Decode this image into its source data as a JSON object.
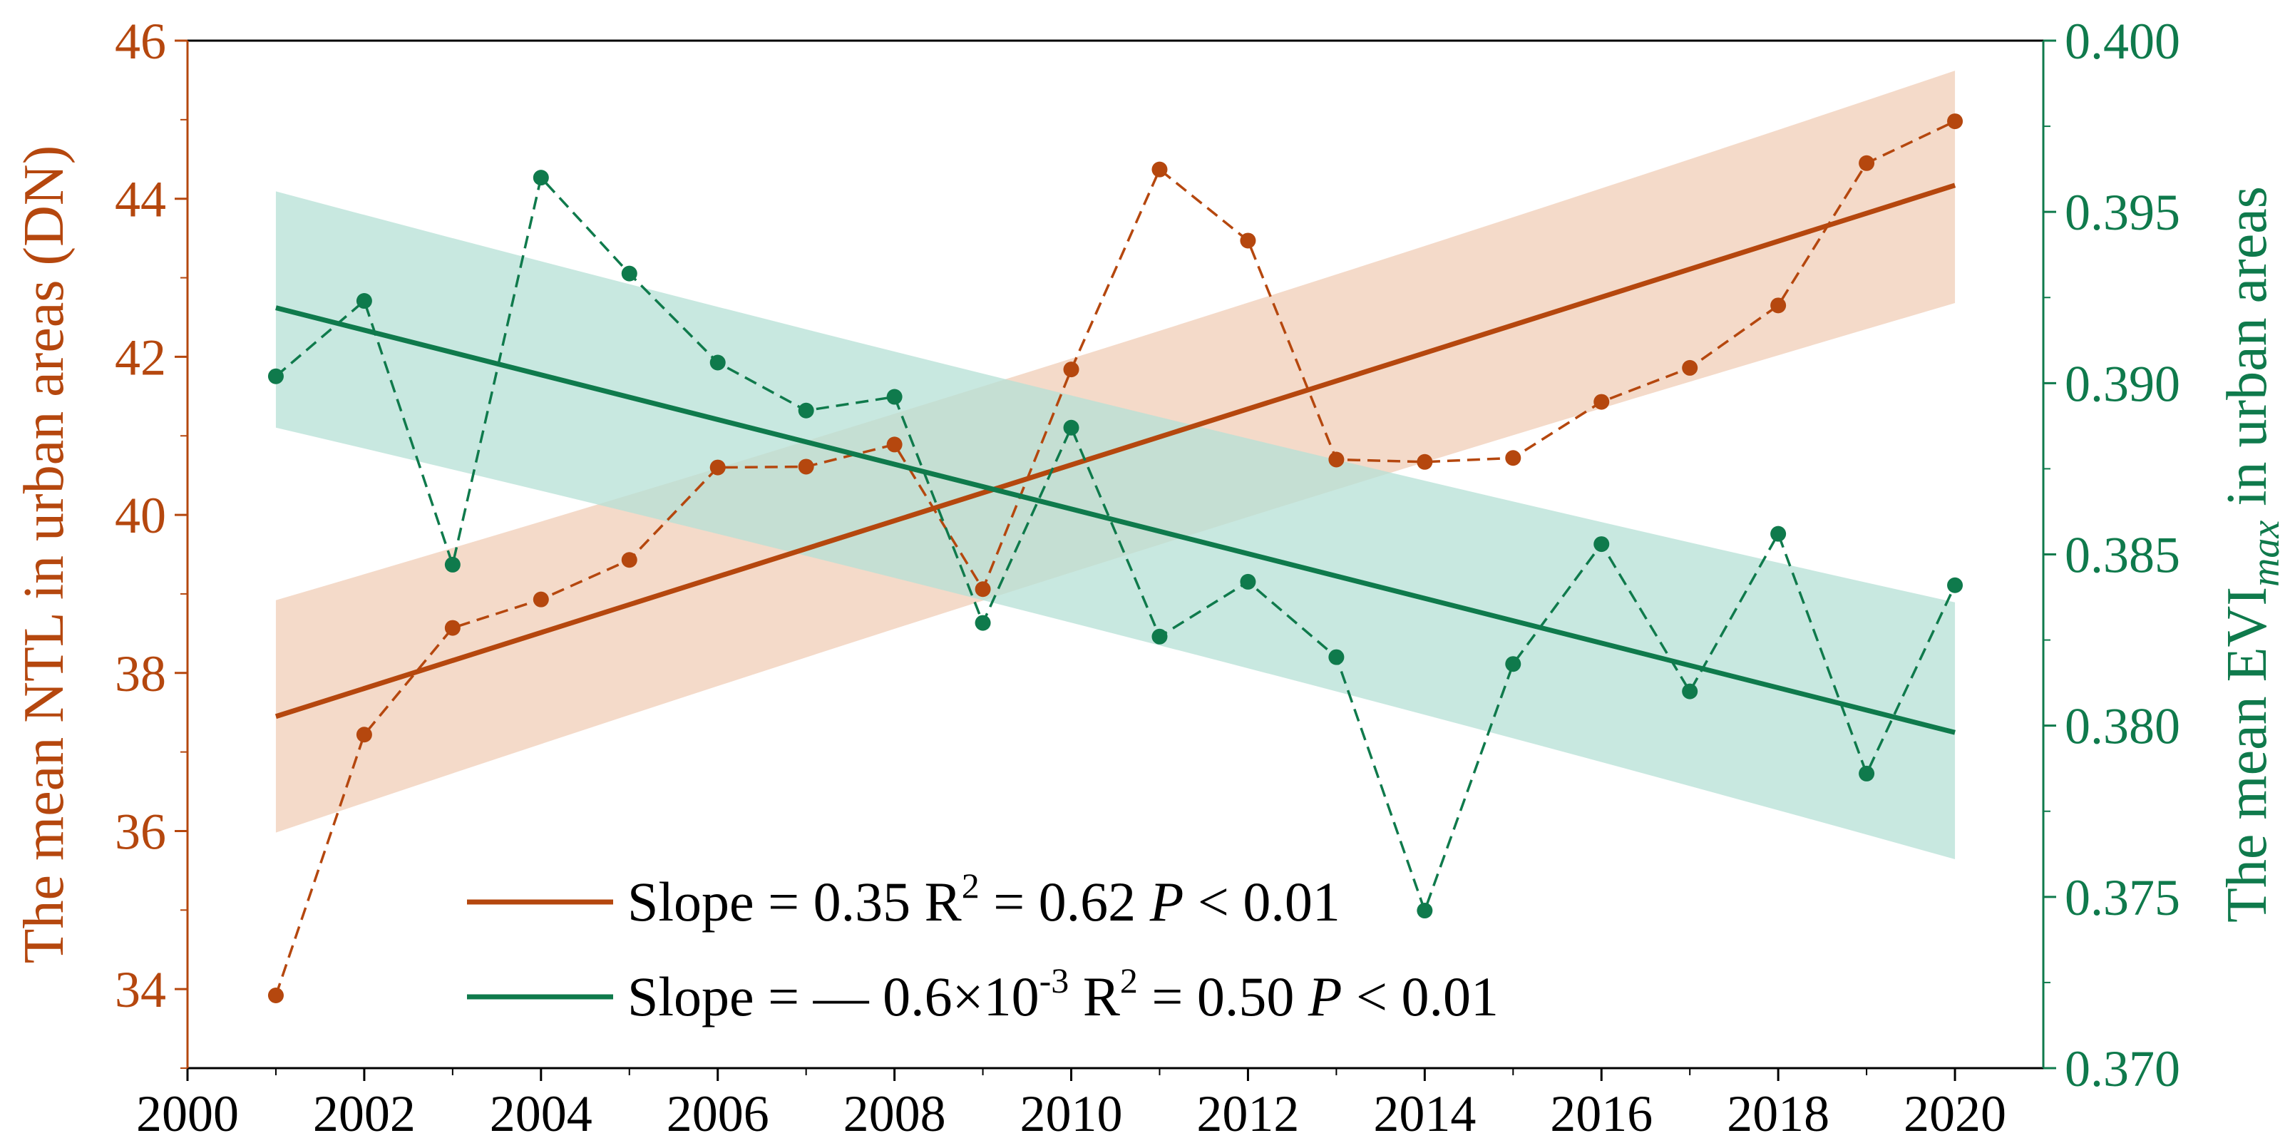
{
  "chart_data": {
    "type": "line",
    "x": [
      2001,
      2002,
      2003,
      2004,
      2005,
      2006,
      2007,
      2008,
      2009,
      2010,
      2011,
      2012,
      2013,
      2014,
      2015,
      2016,
      2017,
      2018,
      2019,
      2020
    ],
    "xlim": [
      2000,
      2021
    ],
    "xticks": [
      "2000",
      "2002",
      "2004",
      "2006",
      "2008",
      "2010",
      "2012",
      "2014",
      "2016",
      "2018",
      "2020"
    ],
    "y_left": {
      "label": "The mean NTL in urban areas (DN)",
      "ylim": [
        33,
        46
      ],
      "ticks": [
        "34",
        "36",
        "38",
        "40",
        "42",
        "44",
        "46"
      ],
      "color": "#b5470e"
    },
    "y_right": {
      "label_prefix": "The mean EVI",
      "label_sub": "max",
      "label_suffix": " in urban areas",
      "ylim": [
        0.37,
        0.4
      ],
      "ticks": [
        "0.370",
        "0.375",
        "0.380",
        "0.385",
        "0.390",
        "0.395",
        "0.400"
      ],
      "color": "#0f7a4c"
    },
    "series": [
      {
        "axis": "left",
        "color": "#b5470e",
        "band_color": "#f2d3c0",
        "values": [
          33.92,
          37.22,
          38.57,
          38.93,
          39.43,
          40.6,
          40.61,
          40.89,
          39.06,
          41.84,
          44.37,
          43.47,
          40.7,
          40.67,
          40.72,
          41.43,
          41.86,
          42.65,
          44.45,
          44.98
        ],
        "trend": [
          37.45,
          44.17
        ],
        "ci_lower": [
          35.98,
          42.68
        ],
        "ci_upper": [
          38.92,
          45.62
        ],
        "legend": {
          "prefix": "Slope =  0.35 R",
          "sup": "2",
          "mid": " = 0.62 ",
          "italic": "P",
          "suffix": " < 0.01"
        }
      },
      {
        "axis": "right",
        "color": "#0f7a4c",
        "band_color": "#b6e0d6",
        "values": [
          0.3902,
          0.3924,
          0.3847,
          0.396,
          0.3932,
          0.3906,
          0.3892,
          0.3896,
          0.383,
          0.3887,
          0.3826,
          0.3842,
          0.382,
          0.3746,
          0.3818,
          0.3853,
          0.381,
          0.3856,
          0.3786,
          0.3841
        ],
        "trend": [
          0.3922,
          0.3798
        ],
        "ci_lower": [
          0.3887,
          0.3761
        ],
        "ci_upper": [
          0.3956,
          0.3836
        ],
        "legend": {
          "prefix": "Slope = — 0.6×10",
          "exp": "-3",
          "mid1": " R",
          "sup": "2",
          "mid": " = 0.50 ",
          "italic": "P",
          "suffix": " < 0.01"
        }
      }
    ]
  }
}
